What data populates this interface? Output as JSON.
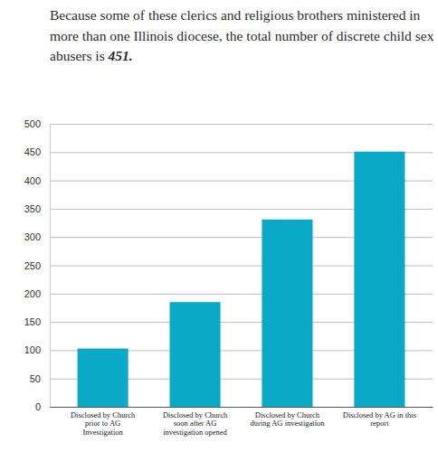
{
  "chart_data": {
    "type": "bar",
    "title": "Because some of these clerics and religious brothers ministered in more than one Illinois diocese, the total number of discrete child sex abusers is 451.",
    "categories": [
      "Disclosed by Church prior to AG Investigation",
      "Disclosed by Church soon after AG investigation opened",
      "Disclosed by Church during AG investigation",
      "Disclosed by AG in this report"
    ],
    "values": [
      103,
      185,
      331,
      451
    ],
    "color": "#0aa9c6",
    "ylim": [
      0,
      500
    ],
    "yticks": [
      0,
      50,
      100,
      150,
      200,
      250,
      300,
      350,
      400,
      450,
      500
    ],
    "grid": true
  }
}
